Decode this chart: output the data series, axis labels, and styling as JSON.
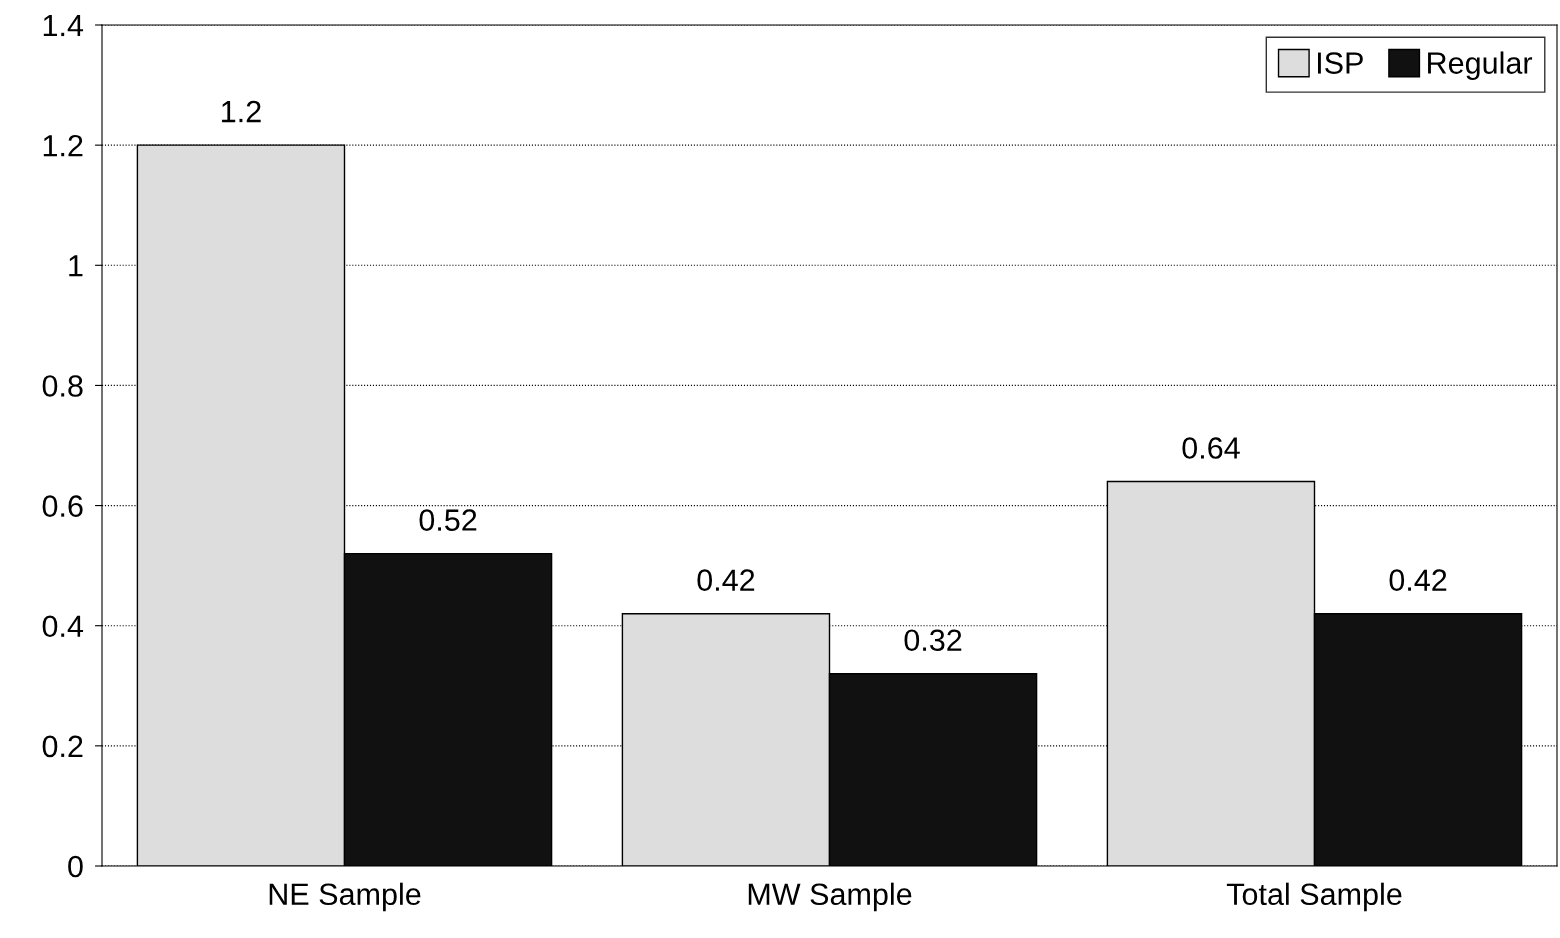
{
  "chart_data": {
    "type": "bar",
    "categories": [
      "NE Sample",
      "MW Sample",
      "Total Sample"
    ],
    "series": [
      {
        "name": "ISP",
        "color": "#dddddd",
        "values": [
          1.2,
          0.42,
          0.64
        ]
      },
      {
        "name": "Regular",
        "color": "#111111",
        "values": [
          0.52,
          0.32,
          0.42
        ]
      }
    ],
    "ylim": [
      0,
      1.4
    ],
    "yticks": [
      0,
      0.2,
      0.4,
      0.6,
      0.8,
      1,
      1.2,
      1.4
    ],
    "grid": "y",
    "legend": "top right",
    "data_labels": true
  }
}
